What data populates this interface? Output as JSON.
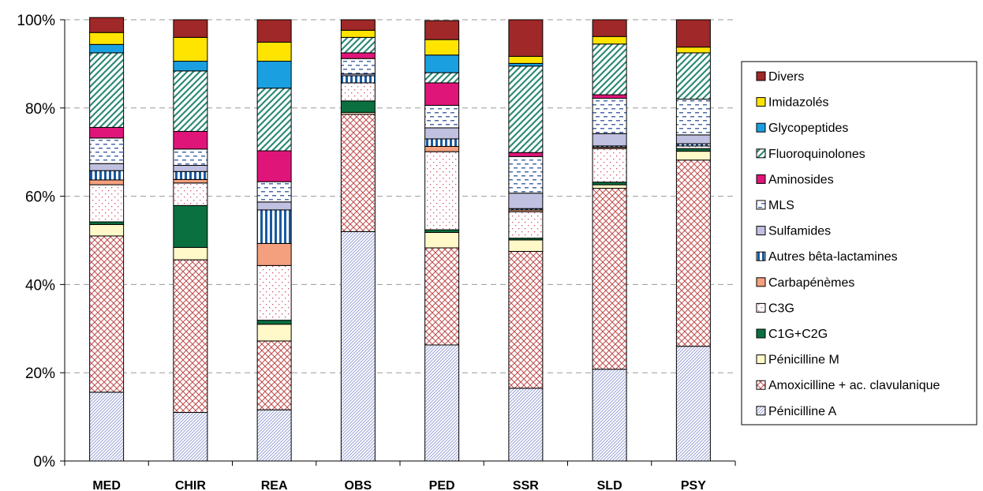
{
  "chart_data": {
    "type": "bar",
    "stacked": true,
    "percent": true,
    "categories": [
      "MED",
      "CHIR",
      "REA",
      "OBS",
      "PED",
      "SSR",
      "SLD",
      "PSY"
    ],
    "y_ticks": [
      "0%",
      "20%",
      "40%",
      "60%",
      "80%",
      "100%"
    ],
    "ylim": [
      0,
      100
    ],
    "grid": "horizontal dashed",
    "legend_position": "right",
    "series": [
      {
        "name": "Pénicilline A",
        "color": "#9aa3d6",
        "pattern": "diag-right",
        "values": [
          15.6,
          11,
          11.6,
          52,
          26.3,
          16.5,
          20.8,
          26
        ]
      },
      {
        "name": "Amoxicilline + ac. clavulanique",
        "color": "#c04a4a",
        "pattern": "crosshatch",
        "values": [
          35.4,
          34.6,
          15.6,
          26.6,
          22,
          31,
          41,
          42.2
        ]
      },
      {
        "name": "Pénicilline M",
        "color": "#fff8c8",
        "pattern": "solid",
        "values": [
          2.6,
          2.8,
          3.8,
          0.4,
          3.5,
          2.6,
          0.8,
          2
        ]
      },
      {
        "name": "C1G+C2G",
        "color": "#0a7040",
        "pattern": "solid",
        "values": [
          0.6,
          9.5,
          0.9,
          2.6,
          0.6,
          0.4,
          0.6,
          0.6
        ]
      },
      {
        "name": "C3G",
        "color": "#d0506a",
        "pattern": "dots",
        "values": [
          8.4,
          5.1,
          12.4,
          4.1,
          17.7,
          6,
          7.6,
          0.6
        ]
      },
      {
        "name": "Carbapénèmes",
        "color": "#f4a07e",
        "pattern": "solid",
        "values": [
          1.1,
          0.8,
          5,
          0,
          1.2,
          0.4,
          0.3,
          0
        ]
      },
      {
        "name": "Autres bêta-lactamines",
        "color": "#1a5aa0",
        "pattern": "vstripe",
        "values": [
          2.1,
          1.8,
          7.6,
          1.6,
          1.7,
          0.3,
          0.3,
          0.5
        ]
      },
      {
        "name": "Sulfamides",
        "color": "#c0c0e0",
        "pattern": "solid",
        "values": [
          1.6,
          1.4,
          1.8,
          0.4,
          2.5,
          3.5,
          2.8,
          2
        ]
      },
      {
        "name": "MLS",
        "color": "#4a6aa8",
        "pattern": "dash",
        "values": [
          5.8,
          3.7,
          4.6,
          3.5,
          5.1,
          8.3,
          8,
          8.1
        ]
      },
      {
        "name": "Aminosides",
        "color": "#e0157a",
        "pattern": "solid",
        "values": [
          2.4,
          4,
          7,
          1.3,
          5.1,
          0.9,
          0.8,
          0
        ]
      },
      {
        "name": "Fluoroquinolones",
        "color": "#2e8a76",
        "pattern": "diag-left",
        "values": [
          16.9,
          13.7,
          14.2,
          3.5,
          2.3,
          19.6,
          11.5,
          10.5
        ]
      },
      {
        "name": "Glycopeptides",
        "color": "#1aa0e0",
        "pattern": "solid",
        "values": [
          1.9,
          2.2,
          6.1,
          0,
          4,
          0.6,
          0,
          0
        ]
      },
      {
        "name": "Imidazolés",
        "color": "#ffe400",
        "pattern": "solid",
        "values": [
          2.7,
          5.4,
          4.3,
          1.6,
          3.5,
          1.6,
          1.7,
          1.3
        ]
      },
      {
        "name": "Divers",
        "color": "#a02828",
        "pattern": "solid",
        "values": [
          3.4,
          4,
          5.1,
          2.4,
          4.3,
          8.3,
          3.8,
          6.2
        ]
      }
    ]
  }
}
